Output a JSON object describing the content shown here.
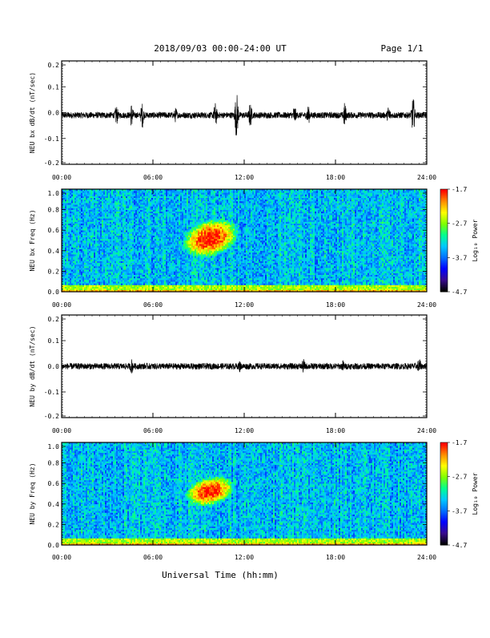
{
  "header": {
    "date_range": "2018/09/03  00:00-24:00 UT",
    "page": "Page 1/1"
  },
  "x_axis": {
    "label": "Universal Time (hh:mm)",
    "ticks": [
      "00:00",
      "06:00",
      "12:00",
      "18:00",
      "24:00"
    ],
    "range_hours": [
      0,
      24
    ]
  },
  "colorbar": {
    "label": "Log₁₀ Power",
    "ticks": [
      "-1.7",
      "-2.7",
      "-3.7",
      "-4.7"
    ],
    "range": [
      -4.7,
      -1.7
    ],
    "colormap": [
      "#000000",
      "#3a0a8f",
      "#0000ff",
      "#0070ff",
      "#00c8ff",
      "#00ff90",
      "#7fff00",
      "#ffff00",
      "#ff8c00",
      "#ff0000"
    ]
  },
  "chart_data": [
    {
      "type": "line",
      "ylabel": "NEU bx dB/dt (nT/sec)",
      "ylim": [
        -0.2,
        0.2
      ],
      "yticks": [
        "0.2",
        "0.1",
        "0.0",
        "-0.1",
        "-0.2"
      ],
      "baseline": -0.01,
      "series_color": "#000000",
      "bursts": [
        {
          "x": 3.6,
          "amp": 0.04
        },
        {
          "x": 4.6,
          "amp": 0.05
        },
        {
          "x": 5.3,
          "amp": 0.05
        },
        {
          "x": 7.5,
          "amp": 0.03
        },
        {
          "x": 10.1,
          "amp": 0.05
        },
        {
          "x": 11.5,
          "amp": 0.09
        },
        {
          "x": 12.4,
          "amp": 0.05
        },
        {
          "x": 15.3,
          "amp": 0.04
        },
        {
          "x": 16.2,
          "amp": 0.04
        },
        {
          "x": 18.6,
          "amp": 0.05
        },
        {
          "x": 21.5,
          "amp": 0.04
        },
        {
          "x": 23.1,
          "amp": 0.07
        }
      ]
    },
    {
      "type": "heatmap",
      "ylabel": "NEU bx Freq (Hz)",
      "ylim": [
        0.0,
        1.0
      ],
      "yticks": [
        "1.0",
        "0.8",
        "0.6",
        "0.4",
        "0.2",
        "0.0"
      ],
      "x_range_hours": [
        0,
        24
      ],
      "background_power": -3.4,
      "low_freq_band_power": -2.6,
      "enhancement": {
        "time_range_hours": [
          7.8,
          11.8
        ],
        "freq_range_hz": [
          0.3,
          0.75
        ],
        "peak_power": -1.7
      }
    },
    {
      "type": "line",
      "ylabel": "NEU by dB/dt (nT/sec)",
      "ylim": [
        -0.2,
        0.2
      ],
      "yticks": [
        "0.2",
        "0.1",
        "0.0",
        "-0.1",
        "-0.2"
      ],
      "baseline": 0.0,
      "series_color": "#000000",
      "bursts": [
        {
          "x": 4.6,
          "amp": 0.03
        },
        {
          "x": 11.7,
          "amp": 0.025
        },
        {
          "x": 15.9,
          "amp": 0.03
        },
        {
          "x": 18.5,
          "amp": 0.025
        },
        {
          "x": 23.5,
          "amp": 0.035
        }
      ]
    },
    {
      "type": "heatmap",
      "ylabel": "NEU by Freq (Hz)",
      "ylim": [
        0.0,
        1.0
      ],
      "yticks": [
        "1.0",
        "0.8",
        "0.6",
        "0.4",
        "0.2",
        "0.0"
      ],
      "x_range_hours": [
        0,
        24
      ],
      "background_power": -3.4,
      "low_freq_band_power": -2.6,
      "enhancement": {
        "time_range_hours": [
          8.0,
          11.5
        ],
        "freq_range_hz": [
          0.35,
          0.7
        ],
        "peak_power": -1.7
      }
    }
  ]
}
